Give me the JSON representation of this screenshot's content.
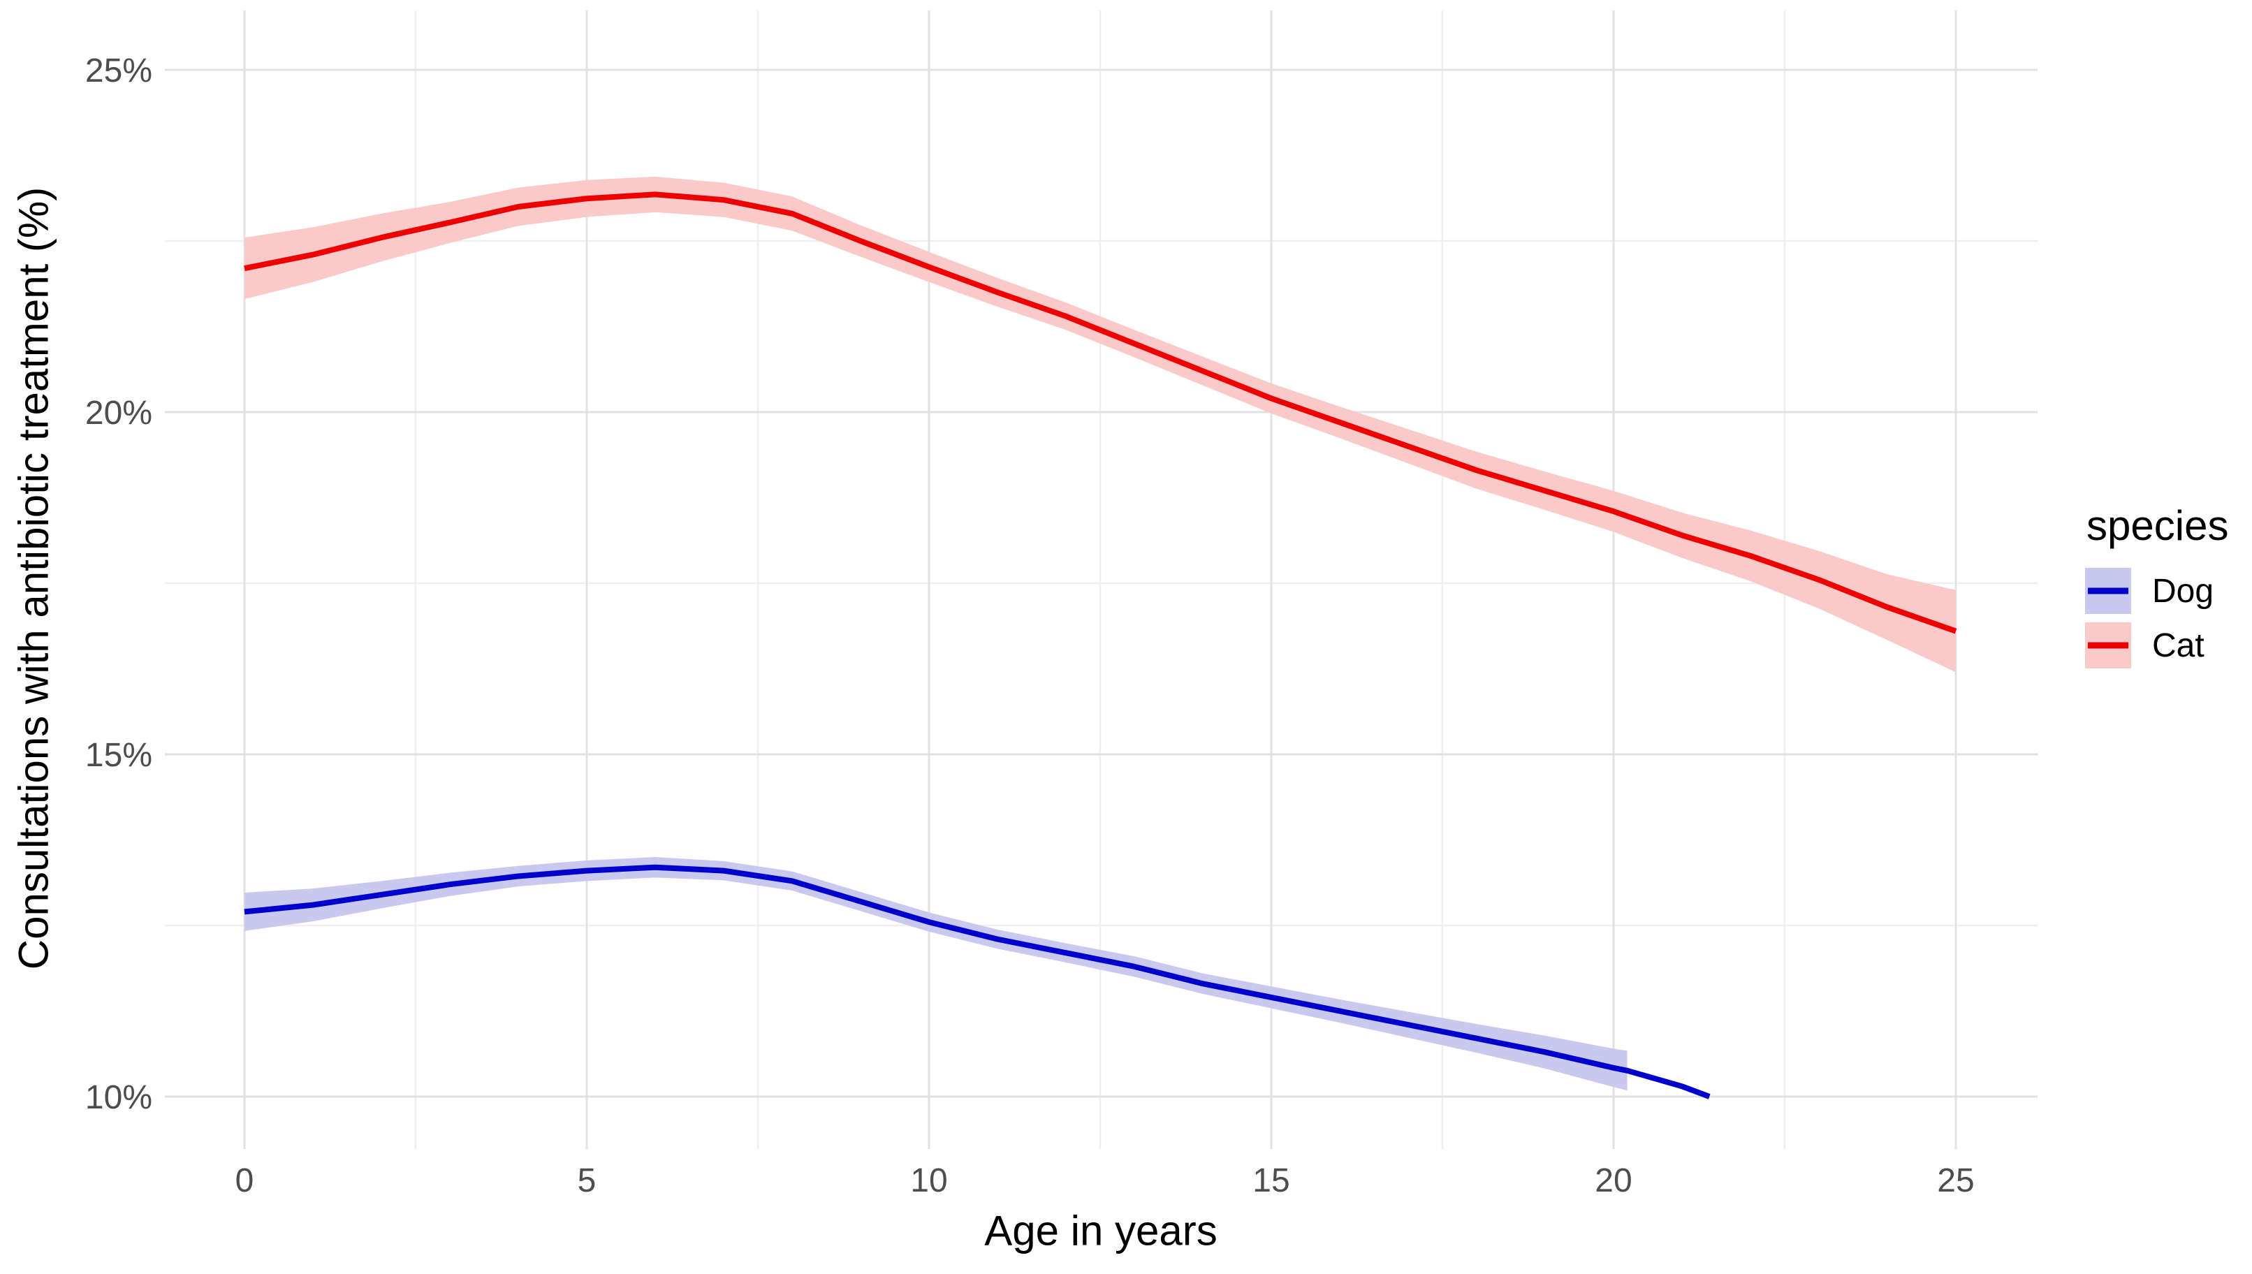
{
  "figure": {
    "y_axis_title": "Consultations with antibiotic treatment (%)",
    "x_axis_title": "Age in years"
  },
  "legend": {
    "title": "species",
    "items": [
      {
        "label": "Dog",
        "line_color": "#0000CD",
        "fill_color": "#C9C9F0"
      },
      {
        "label": "Cat",
        "line_color": "#EE0000",
        "fill_color": "#FACACA"
      }
    ]
  },
  "chart_data": {
    "type": "line",
    "title": "",
    "xlabel": "Age in years",
    "ylabel": "Consultations with antibiotic treatment (%)",
    "grid": "major and minor, light gray on white",
    "legend_position": "right",
    "x_axis": {
      "range": [
        -1.163,
        26.194
      ],
      "ticks": [
        {
          "value": 0,
          "label": "0"
        },
        {
          "value": 5,
          "label": "5"
        },
        {
          "value": 10,
          "label": "10"
        },
        {
          "value": 15,
          "label": "15"
        },
        {
          "value": 20,
          "label": "20"
        },
        {
          "value": 25,
          "label": "25"
        }
      ],
      "minor_ticks": [
        2.5,
        7.5,
        12.5,
        17.5,
        22.5
      ]
    },
    "y_axis": {
      "range": [
        9.235,
        25.867
      ],
      "ticks": [
        {
          "value": 10,
          "label": "10%"
        },
        {
          "value": 15,
          "label": "15%"
        },
        {
          "value": 20,
          "label": "20%"
        },
        {
          "value": 25,
          "label": "25%"
        }
      ],
      "minor_ticks": [
        12.5,
        17.5,
        22.5
      ]
    },
    "series": [
      {
        "name": "Cat",
        "color": "#EE0000",
        "ribbon_color": "#FACACA",
        "x": [
          0,
          1,
          2,
          3,
          4,
          5,
          6,
          7,
          8,
          9,
          10,
          11,
          12,
          13,
          14,
          15,
          16,
          17,
          18,
          19,
          20,
          21,
          22,
          23,
          24,
          25
        ],
        "y": [
          22.1,
          22.3,
          22.55,
          22.77,
          23.0,
          23.12,
          23.18,
          23.1,
          22.9,
          22.5,
          22.12,
          21.75,
          21.4,
          21.0,
          20.6,
          20.2,
          19.85,
          19.5,
          19.15,
          18.85,
          18.55,
          18.2,
          17.9,
          17.55,
          17.15,
          16.8
        ],
        "ribbon": {
          "x": [
            0,
            1,
            2,
            3,
            4,
            5,
            6,
            7,
            8,
            9,
            10,
            11,
            12,
            13,
            14,
            15,
            16,
            17,
            18,
            19,
            20,
            21,
            22,
            23,
            24,
            25
          ],
          "lo": [
            21.65,
            21.9,
            22.2,
            22.47,
            22.72,
            22.85,
            22.92,
            22.85,
            22.65,
            22.27,
            21.9,
            21.54,
            21.2,
            20.8,
            20.39,
            19.98,
            19.62,
            19.25,
            18.88,
            18.57,
            18.25,
            17.87,
            17.53,
            17.13,
            16.67,
            16.2
          ],
          "hi": [
            22.55,
            22.7,
            22.9,
            23.07,
            23.28,
            23.39,
            23.44,
            23.35,
            23.15,
            22.73,
            22.34,
            21.96,
            21.6,
            21.2,
            20.81,
            20.42,
            20.08,
            19.75,
            19.42,
            19.13,
            18.85,
            18.53,
            18.27,
            17.97,
            17.63,
            17.4
          ]
        }
      },
      {
        "name": "Dog",
        "color": "#0000CD",
        "ribbon_color": "#C9C9F0",
        "x": [
          0,
          1,
          2,
          3,
          4,
          5,
          6,
          7,
          8,
          9,
          10,
          11,
          12,
          13,
          14,
          15,
          16,
          17,
          18,
          19,
          20,
          20.2,
          21,
          21.4
        ],
        "y": [
          12.7,
          12.8,
          12.95,
          13.1,
          13.22,
          13.3,
          13.35,
          13.3,
          13.15,
          12.85,
          12.55,
          12.3,
          12.1,
          11.9,
          11.65,
          11.45,
          11.25,
          11.05,
          10.85,
          10.65,
          10.42,
          10.38,
          10.15,
          10.0
        ],
        "ribbon": {
          "x": [
            0,
            1,
            2,
            3,
            4,
            5,
            6,
            7,
            8,
            9,
            10,
            11,
            12,
            13,
            14,
            15,
            16,
            17,
            18,
            19,
            20,
            20.2
          ],
          "lo": [
            12.42,
            12.56,
            12.75,
            12.93,
            13.07,
            13.15,
            13.2,
            13.16,
            13.01,
            12.71,
            12.41,
            12.16,
            11.96,
            11.75,
            11.5,
            11.29,
            11.08,
            10.86,
            10.64,
            10.41,
            10.14,
            10.09
          ],
          "hi": [
            12.98,
            13.04,
            13.15,
            13.27,
            13.37,
            13.45,
            13.5,
            13.44,
            13.29,
            12.99,
            12.69,
            12.44,
            12.24,
            12.05,
            11.8,
            11.61,
            11.42,
            11.24,
            11.06,
            10.89,
            10.7,
            10.67
          ]
        }
      }
    ],
    "style": {
      "major_grid_color": "#E2E2E2",
      "minor_grid_color": "#EFEFEF",
      "tick_label_color": "#4D4D4D",
      "axis_title_color": "#000000",
      "background": "#FFFFFF"
    }
  }
}
